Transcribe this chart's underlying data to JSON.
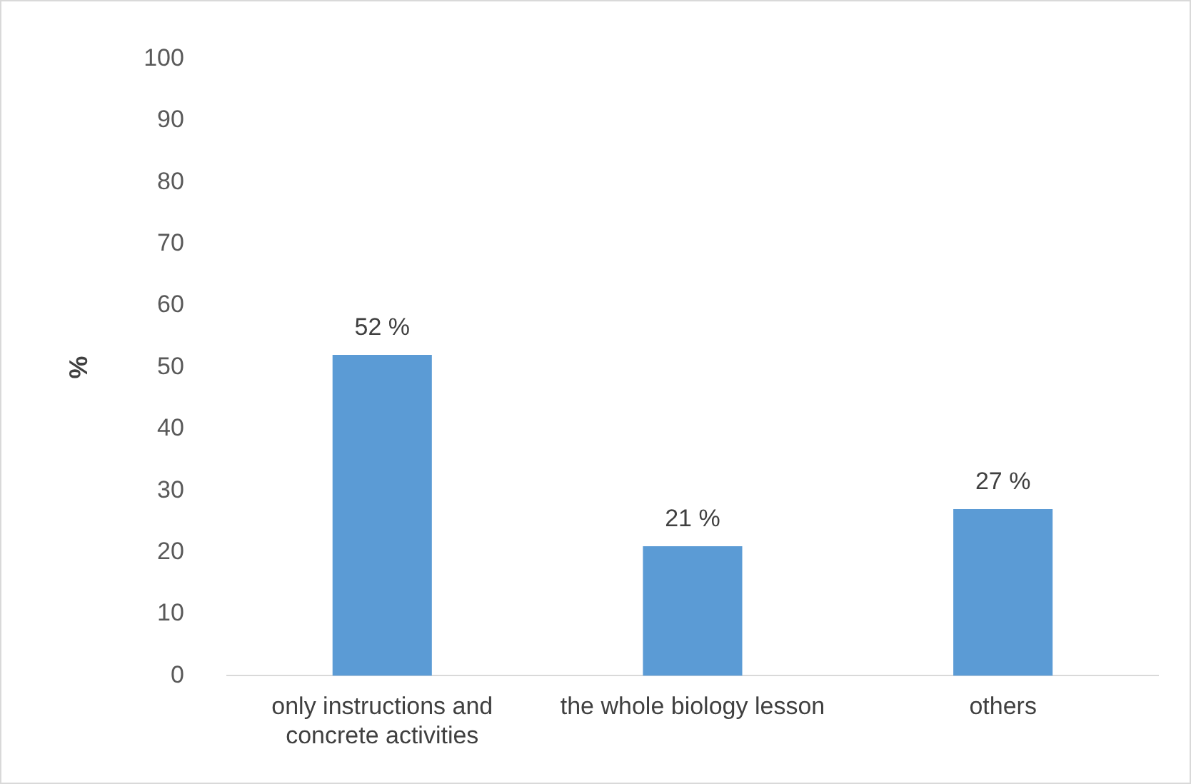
{
  "chart_data": {
    "type": "bar",
    "ylabel": "%",
    "categories": [
      "only instructions and concrete activities",
      "the whole biology lesson",
      "others"
    ],
    "values": [
      52,
      21,
      27
    ],
    "value_labels": [
      "52 %",
      "21 %",
      "27 %"
    ],
    "color": "#5b9bd5",
    "ylim": [
      0,
      100
    ],
    "yticks": [
      0,
      10,
      20,
      30,
      40,
      50,
      60,
      70,
      80,
      90,
      100
    ],
    "grid": false,
    "legend": false
  }
}
